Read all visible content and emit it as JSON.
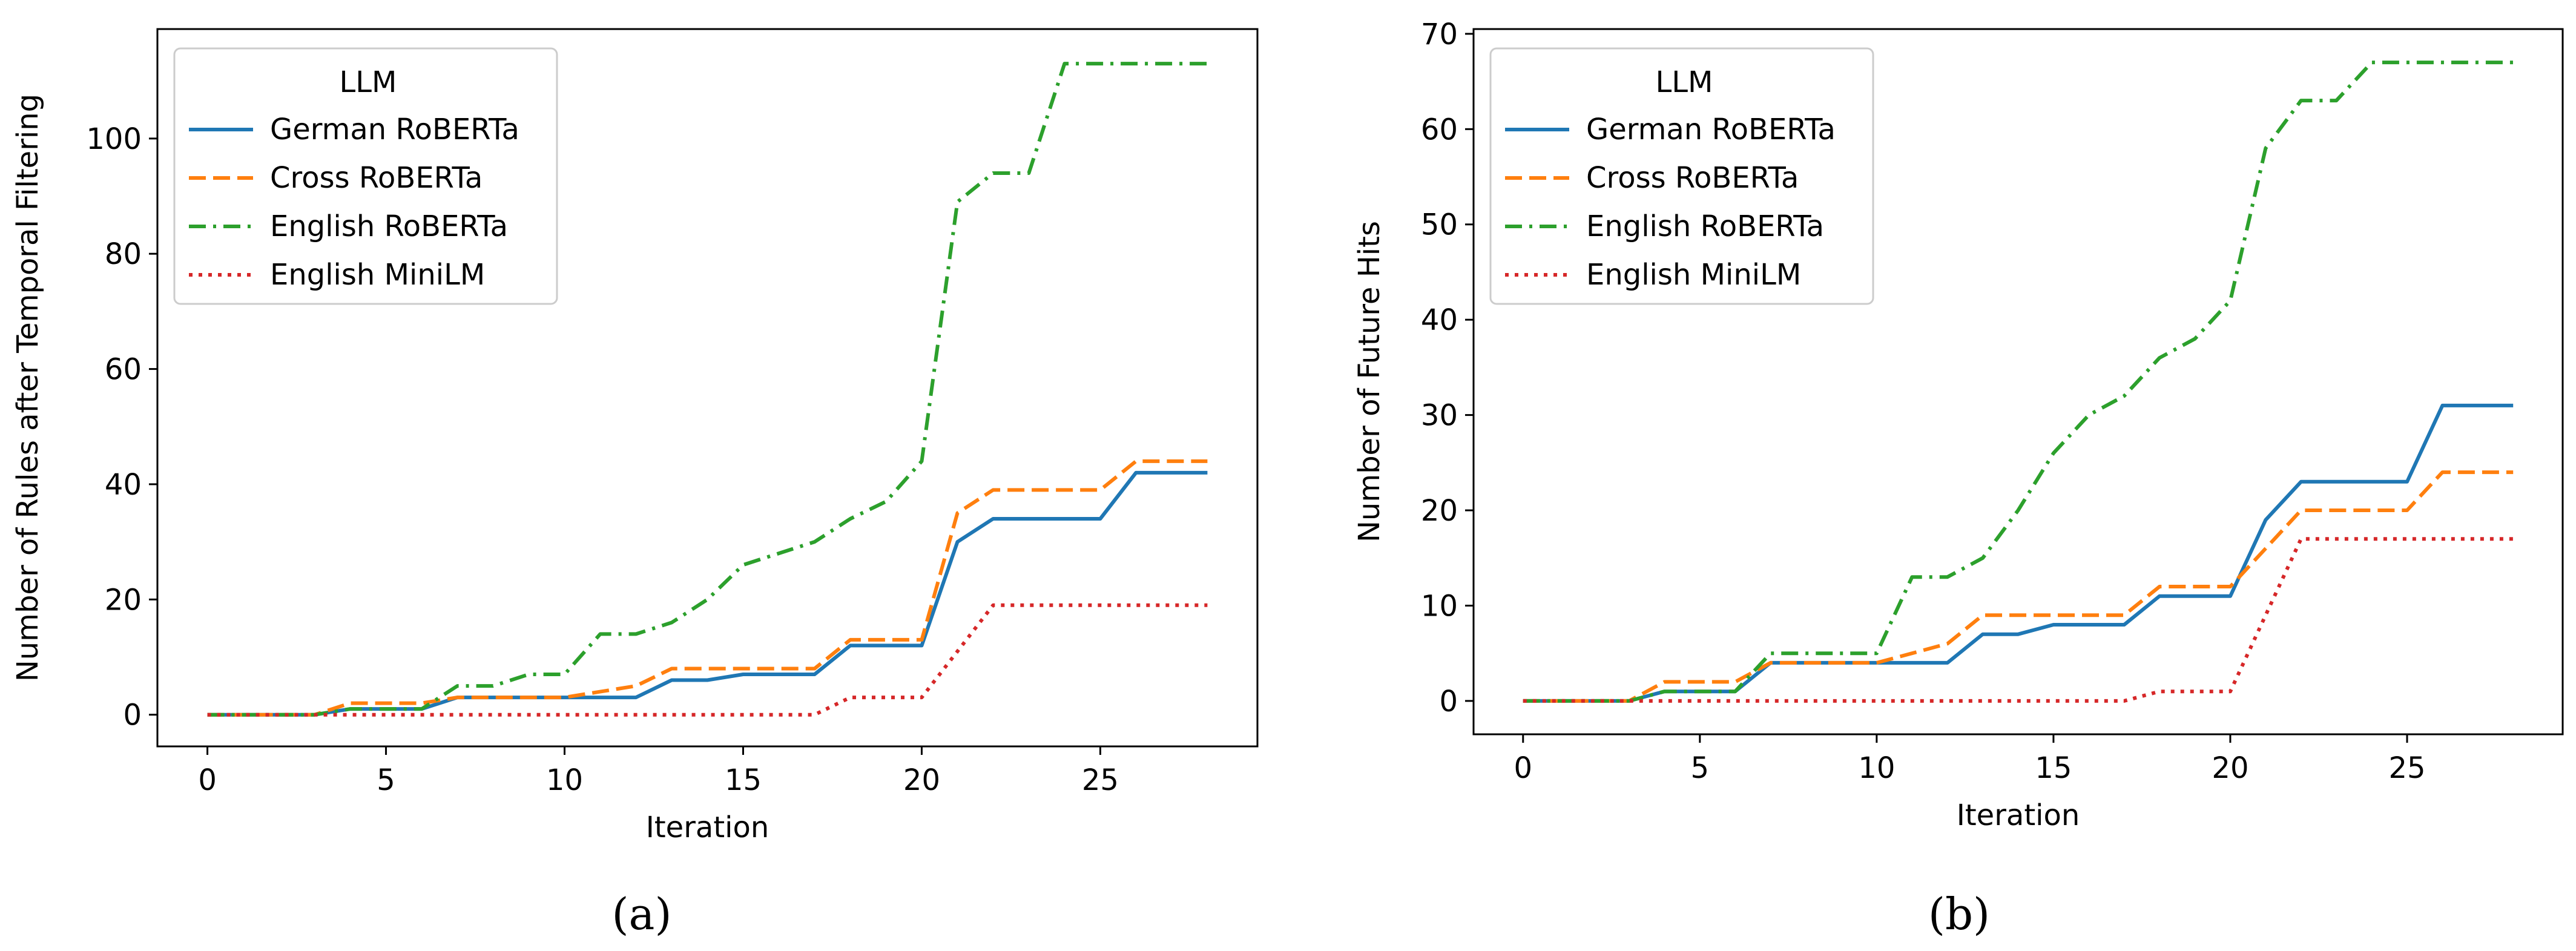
{
  "chart_data": [
    {
      "panel": "a",
      "caption": "(a)",
      "type": "line",
      "title": "",
      "xlabel": "Iteration",
      "ylabel": "Number of Rules after Temporal Filtering",
      "xlim": [
        -1.4,
        29.4
      ],
      "ylim": [
        -5.5,
        119
      ],
      "xticks": [
        0,
        5,
        10,
        15,
        20,
        25
      ],
      "xtick_labels": [
        "0",
        "5",
        "10",
        "15",
        "20",
        "25"
      ],
      "yticks": [
        0,
        20,
        40,
        60,
        80,
        100
      ],
      "ytick_labels": [
        "0",
        "20",
        "40",
        "60",
        "80",
        "100"
      ],
      "grid": false,
      "legend": {
        "title": "LLM",
        "placement": "top-left"
      },
      "x": [
        0,
        1,
        2,
        3,
        4,
        5,
        6,
        7,
        8,
        9,
        10,
        11,
        12,
        13,
        14,
        15,
        16,
        17,
        18,
        19,
        20,
        21,
        22,
        23,
        24,
        25,
        26,
        27,
        28
      ],
      "series": [
        {
          "name": "German RoBERTa",
          "color": "#1f77b4",
          "dash": "solid",
          "values": [
            0,
            0,
            0,
            0,
            1,
            1,
            1,
            3,
            3,
            3,
            3,
            3,
            3,
            6,
            6,
            7,
            7,
            7,
            12,
            12,
            12,
            30,
            34,
            34,
            34,
            34,
            42,
            42,
            42
          ]
        },
        {
          "name": "Cross RoBERTa",
          "color": "#ff7f0e",
          "dash": "dashed",
          "values": [
            0,
            0,
            0,
            0,
            2,
            2,
            2,
            3,
            3,
            3,
            3,
            4,
            5,
            8,
            8,
            8,
            8,
            8,
            13,
            13,
            13,
            35,
            39,
            39,
            39,
            39,
            44,
            44,
            44
          ]
        },
        {
          "name": "English RoBERTa",
          "color": "#2ca02c",
          "dash": "dashdot",
          "values": [
            0,
            0,
            0,
            0,
            1,
            1,
            1,
            5,
            5,
            7,
            7,
            14,
            14,
            16,
            20,
            26,
            28,
            30,
            34,
            37,
            44,
            89,
            94,
            94,
            113,
            113,
            113,
            113,
            113
          ]
        },
        {
          "name": "English MiniLM",
          "color": "#d62728",
          "dash": "dotted",
          "values": [
            0,
            0,
            0,
            0,
            0,
            0,
            0,
            0,
            0,
            0,
            0,
            0,
            0,
            0,
            0,
            0,
            0,
            0,
            3,
            3,
            3,
            11,
            19,
            19,
            19,
            19,
            19,
            19,
            19
          ]
        }
      ]
    },
    {
      "panel": "b",
      "caption": "(b)",
      "type": "line",
      "title": "",
      "xlabel": "Iteration",
      "ylabel": "Number of Future Hits",
      "xlim": [
        -1.4,
        29.4
      ],
      "ylim": [
        -3.5,
        70.5
      ],
      "xticks": [
        0,
        5,
        10,
        15,
        20,
        25
      ],
      "xtick_labels": [
        "0",
        "5",
        "10",
        "15",
        "20",
        "25"
      ],
      "yticks": [
        0,
        10,
        20,
        30,
        40,
        50,
        60,
        70
      ],
      "ytick_labels": [
        "0",
        "10",
        "20",
        "30",
        "40",
        "50",
        "60",
        "70"
      ],
      "grid": false,
      "legend": {
        "title": "LLM",
        "placement": "top-left"
      },
      "x": [
        0,
        1,
        2,
        3,
        4,
        5,
        6,
        7,
        8,
        9,
        10,
        11,
        12,
        13,
        14,
        15,
        16,
        17,
        18,
        19,
        20,
        21,
        22,
        23,
        24,
        25,
        26,
        27,
        28
      ],
      "series": [
        {
          "name": "German RoBERTa",
          "color": "#1f77b4",
          "dash": "solid",
          "values": [
            0,
            0,
            0,
            0,
            1,
            1,
            1,
            4,
            4,
            4,
            4,
            4,
            4,
            7,
            7,
            8,
            8,
            8,
            11,
            11,
            11,
            19,
            23,
            23,
            23,
            23,
            31,
            31,
            31
          ]
        },
        {
          "name": "Cross RoBERTa",
          "color": "#ff7f0e",
          "dash": "dashed",
          "values": [
            0,
            0,
            0,
            0,
            2,
            2,
            2,
            4,
            4,
            4,
            4,
            5,
            6,
            9,
            9,
            9,
            9,
            9,
            12,
            12,
            12,
            16,
            20,
            20,
            20,
            20,
            24,
            24,
            24
          ]
        },
        {
          "name": "English RoBERTa",
          "color": "#2ca02c",
          "dash": "dashdot",
          "values": [
            0,
            0,
            0,
            0,
            1,
            1,
            1,
            5,
            5,
            5,
            5,
            13,
            13,
            15,
            20,
            26,
            30,
            32,
            36,
            38,
            42,
            58,
            63,
            63,
            67,
            67,
            67,
            67,
            67
          ]
        },
        {
          "name": "English MiniLM",
          "color": "#d62728",
          "dash": "dotted",
          "values": [
            0,
            0,
            0,
            0,
            0,
            0,
            0,
            0,
            0,
            0,
            0,
            0,
            0,
            0,
            0,
            0,
            0,
            0,
            1,
            1,
            1,
            9,
            17,
            17,
            17,
            17,
            17,
            17,
            17
          ]
        }
      ]
    }
  ]
}
